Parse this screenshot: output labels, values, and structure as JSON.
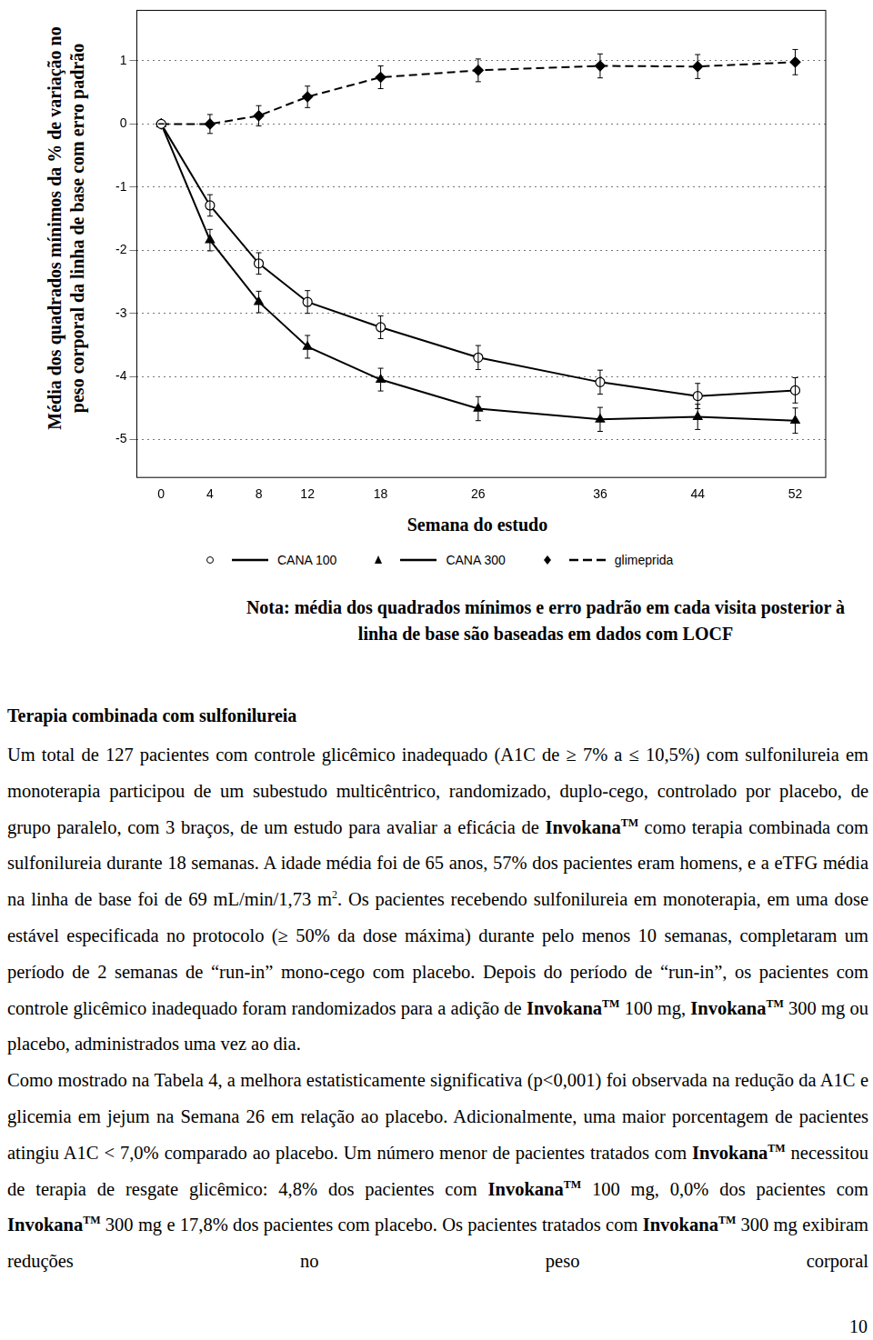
{
  "chart_data": {
    "type": "line",
    "y_label": [
      "Média dos quadrados mínimos da % de variação no",
      "peso corporal da linha de base com erro padrão"
    ],
    "x_label": "Semana do estudo",
    "x": [
      0,
      4,
      8,
      12,
      18,
      26,
      36,
      44,
      52
    ],
    "xlim": [
      -2,
      54.5
    ],
    "xticks": [
      0,
      4,
      8,
      12,
      18,
      26,
      36,
      44,
      52
    ],
    "ylim": [
      -5.6,
      1.8
    ],
    "yticks": [
      -5,
      -4,
      -3,
      -2,
      -1,
      0,
      1
    ],
    "grid": true,
    "series": [
      {
        "name": "CANA 100",
        "color": "#000000",
        "marker": "open_circle",
        "line_style": "solid",
        "values": [
          0,
          -1.29,
          -2.21,
          -2.82,
          -3.22,
          -3.7,
          -4.09,
          -4.31,
          -4.22
        ],
        "errors": [
          0,
          0.17,
          0.17,
          0.18,
          0.18,
          0.19,
          0.19,
          0.2,
          0.2
        ]
      },
      {
        "name": "CANA 300",
        "color": "#000000",
        "marker": "triangle",
        "line_style": "solid",
        "values": [
          0,
          -1.84,
          -2.82,
          -3.53,
          -4.05,
          -4.51,
          -4.68,
          -4.64,
          -4.7
        ],
        "errors": [
          0,
          0.17,
          0.17,
          0.18,
          0.18,
          0.19,
          0.19,
          0.2,
          0.2
        ]
      },
      {
        "name": "glimeprida",
        "color": "#000000",
        "marker": "diamond",
        "line_style": "dashed",
        "values": [
          0,
          0,
          0.13,
          0.43,
          0.74,
          0.85,
          0.92,
          0.91,
          0.98
        ],
        "errors": [
          0,
          0.15,
          0.16,
          0.17,
          0.18,
          0.18,
          0.19,
          0.19,
          0.2
        ]
      }
    ]
  },
  "note": [
    "Nota: média dos quadrados mínimos e erro padrão em cada visita posterior à",
    "linha de base são baseadas em dados com LOCF"
  ],
  "heading": "Terapia combinada com sulfonilureia",
  "paragraphs": [
    [
      "Um total de 127 pacientes com controle glicêmico inadequado (A1C de ≥ 7% a ≤ 10,5%) com sulfonilureia em monoterapia participou de um subestudo multicêntrico, randomizado, duplo-cego, controlado por placebo, de grupo paralelo, com 3 braços, de um estudo para avaliar a eficácia de ",
      {
        "b": "Invokana",
        "sup": "TM"
      },
      " como terapia combinada com sulfonilureia durante 18 semanas. A idade média foi de 65 anos, 57% dos pacientes eram homens, e a eTFG média na linha de base foi de 69 mL/min/1,73 m",
      {
        "sup": "2"
      },
      ". Os pacientes recebendo sulfonilureia em monoterapia, em uma dose estável especificada no protocolo (≥ 50% da dose máxima) durante pelo menos 10 semanas, completaram um período de 2 semanas de “run-in” mono-cego com placebo. Depois do período de “run-in”, os pacientes com controle glicêmico inadequado foram randomizados para a adição de ",
      {
        "b": "Invokana",
        "sup": "TM"
      },
      " 100 mg, ",
      {
        "b": "Invokana",
        "sup": "TM"
      },
      " 300 mg ou placebo, administrados uma vez ao dia."
    ],
    [
      "Como mostrado na Tabela 4, a melhora estatisticamente significativa (p<0,001) foi observada na redução da A1C e glicemia em jejum na Semana 26 em relação ao placebo. Adicionalmente, uma maior porcentagem de pacientes atingiu A1C < 7,0% comparado ao placebo. Um número menor de pacientes tratados com ",
      {
        "b": "Invokana",
        "sup": "TM"
      },
      " necessitou de terapia de resgate glicêmico: 4,8% dos pacientes com ",
      {
        "b": "Invokana",
        "sup": "TM"
      },
      " 100 mg, 0,0% dos pacientes com ",
      {
        "b": "Invokana",
        "sup": "TM"
      },
      " 300 mg e 17,8% dos pacientes com placebo. Os pacientes tratados com ",
      {
        "b": "Invokana",
        "sup": "TM"
      },
      " 300 mg exibiram reduções no peso corporal"
    ]
  ],
  "page_number": 10
}
